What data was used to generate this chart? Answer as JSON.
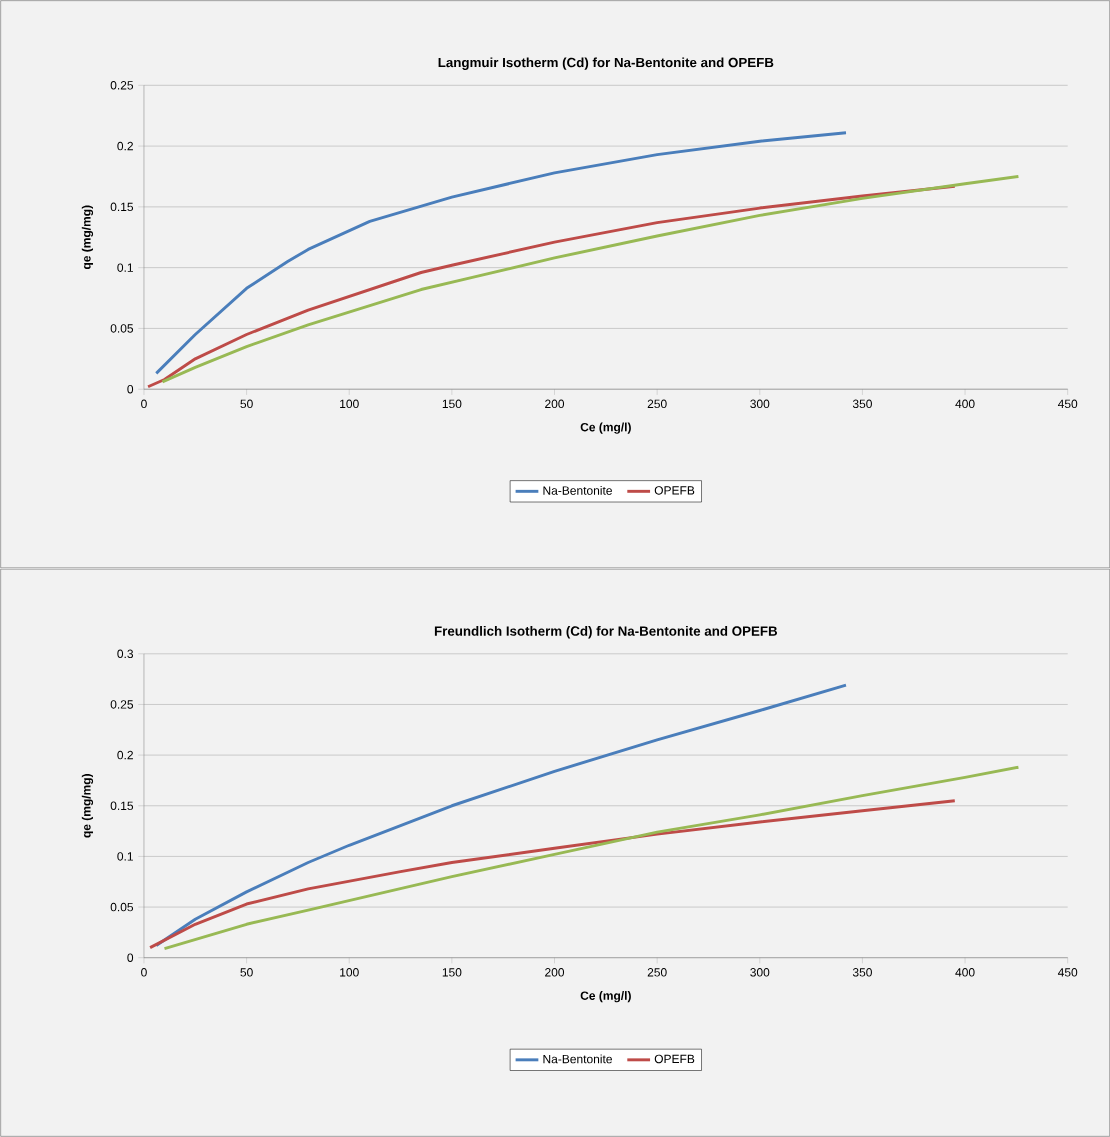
{
  "chart_data": [
    {
      "type": "line",
      "title": "Langmuir Isotherm (Cd) for Na-Bentonite and OPEFB",
      "xlabel": "Ce (mg/l)",
      "ylabel": "qe (mg/mg)",
      "xlim": [
        0,
        450
      ],
      "ylim": [
        0,
        0.25
      ],
      "xticks": [
        0,
        50,
        100,
        150,
        200,
        250,
        300,
        350,
        400,
        450
      ],
      "yticks": [
        0,
        0.05,
        0.1,
        0.15,
        0.2,
        0.25
      ],
      "grid": "y",
      "legend": "bottom",
      "series": [
        {
          "name": "Na-Bentonite",
          "color": "#4a7ebb",
          "x": [
            6,
            25,
            50,
            70,
            80,
            110,
            150,
            200,
            250,
            300,
            342
          ],
          "values": [
            0.013,
            0.045,
            0.083,
            0.105,
            0.115,
            0.138,
            0.158,
            0.178,
            0.193,
            0.204,
            0.211
          ]
        },
        {
          "name": "OPEFB",
          "color": "#be4b48",
          "x": [
            2,
            10,
            25,
            50,
            80,
            135,
            150,
            200,
            250,
            300,
            350,
            395
          ],
          "values": [
            0.002,
            0.008,
            0.025,
            0.045,
            0.065,
            0.096,
            0.102,
            0.121,
            0.137,
            0.149,
            0.159,
            0.167
          ]
        },
        {
          "color": "#98b954",
          "x": [
            9,
            25,
            50,
            80,
            135,
            160,
            200,
            250,
            300,
            350,
            400,
            426
          ],
          "values": [
            0.006,
            0.018,
            0.035,
            0.053,
            0.082,
            0.092,
            0.108,
            0.126,
            0.143,
            0.157,
            0.169,
            0.175
          ]
        }
      ]
    },
    {
      "type": "line",
      "title": "Freundlich Isotherm (Cd) for Na-Bentonite and OPEFB",
      "xlabel": "Ce (mg/l)",
      "ylabel": "qe (mg/mg)",
      "xlim": [
        0,
        450
      ],
      "ylim": [
        0,
        0.3
      ],
      "xticks": [
        0,
        50,
        100,
        150,
        200,
        250,
        300,
        350,
        400,
        450
      ],
      "yticks": [
        0,
        0.05,
        0.1,
        0.15,
        0.2,
        0.25,
        0.3
      ],
      "grid": "y",
      "legend": "bottom",
      "series": [
        {
          "name": "Na-Bentonite",
          "color": "#4a7ebb",
          "x": [
            6,
            25,
            50,
            80,
            100,
            150,
            200,
            250,
            300,
            342
          ],
          "values": [
            0.012,
            0.038,
            0.065,
            0.094,
            0.111,
            0.15,
            0.184,
            0.215,
            0.244,
            0.269
          ]
        },
        {
          "name": "OPEFB",
          "color": "#be4b48",
          "x": [
            3,
            25,
            50,
            80,
            125,
            150,
            200,
            250,
            300,
            350,
            395
          ],
          "values": [
            0.01,
            0.033,
            0.053,
            0.068,
            0.085,
            0.094,
            0.108,
            0.122,
            0.134,
            0.145,
            0.155
          ]
        },
        {
          "color": "#98b954",
          "x": [
            10,
            50,
            80,
            150,
            200,
            250,
            300,
            350,
            400,
            426
          ],
          "values": [
            0.009,
            0.033,
            0.047,
            0.08,
            0.102,
            0.124,
            0.141,
            0.16,
            0.178,
            0.188
          ]
        }
      ]
    }
  ]
}
